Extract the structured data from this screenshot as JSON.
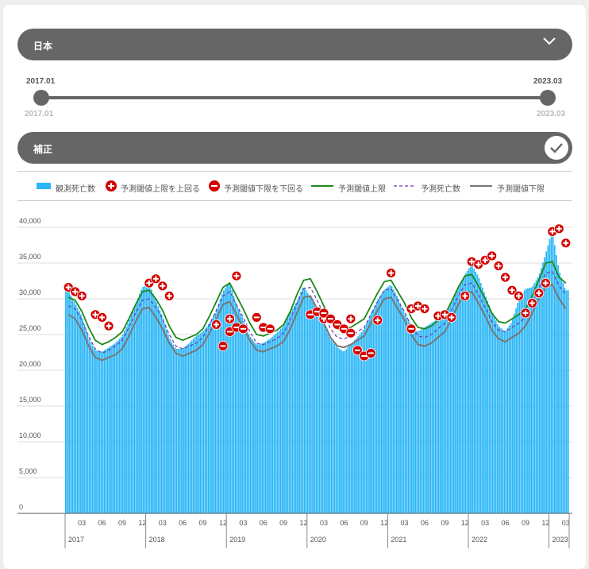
{
  "region": {
    "label": "日本"
  },
  "range": {
    "start_label": "2017.01",
    "end_label": "2023.03",
    "min_label": "2017.01",
    "max_label": "2023.03"
  },
  "hosei": {
    "label": "補正",
    "checked": true
  },
  "legend": [
    {
      "label": "観測死亡数",
      "kind": "bar",
      "color": "#29b6f6"
    },
    {
      "label": "予測閾値上限を上回る",
      "kind": "plus",
      "color": "#d50000"
    },
    {
      "label": "予測閾値下限を下回る",
      "kind": "minus",
      "color": "#d50000"
    },
    {
      "label": "予測閾値上限",
      "kind": "line",
      "color": "#1a8a1a"
    },
    {
      "label": "予測死亡数",
      "kind": "dash",
      "color": "#6a3ab0"
    },
    {
      "label": "予測閾値下限",
      "kind": "line",
      "color": "#777777"
    }
  ],
  "chart_data": {
    "type": "bar",
    "x_start": "2017-01",
    "x_end": "2023-03",
    "ylim": [
      0,
      40000
    ],
    "yticks": [
      0,
      5000,
      10000,
      15000,
      20000,
      25000,
      30000,
      35000,
      40000
    ],
    "ytick_labels": [
      "0",
      "5,000",
      "10,000",
      "15,000",
      "20,000",
      "25,000",
      "30,000",
      "35,000",
      "40,000"
    ],
    "x_month_labels": [
      "03",
      "06",
      "09",
      "12"
    ],
    "x_years": [
      "2017",
      "2018",
      "2019",
      "2020",
      "2021",
      "2022",
      "2023"
    ],
    "series": [
      {
        "name": "予測閾値上限",
        "x": [
          "2017-01",
          "2017-02",
          "2017-03",
          "2017-04",
          "2017-05",
          "2017-06",
          "2017-07",
          "2017-08",
          "2017-09",
          "2017-10",
          "2017-11",
          "2017-12",
          "2018-01",
          "2018-02",
          "2018-03",
          "2018-04",
          "2018-05",
          "2018-06",
          "2018-07",
          "2018-08",
          "2018-09",
          "2018-10",
          "2018-11",
          "2018-12",
          "2019-01",
          "2019-02",
          "2019-03",
          "2019-04",
          "2019-05",
          "2019-06",
          "2019-07",
          "2019-08",
          "2019-09",
          "2019-10",
          "2019-11",
          "2019-12",
          "2020-01",
          "2020-02",
          "2020-03",
          "2020-04",
          "2020-05",
          "2020-06",
          "2020-07",
          "2020-08",
          "2020-09",
          "2020-10",
          "2020-11",
          "2020-12",
          "2021-01",
          "2021-02",
          "2021-03",
          "2021-04",
          "2021-05",
          "2021-06",
          "2021-07",
          "2021-08",
          "2021-09",
          "2021-10",
          "2021-11",
          "2021-12",
          "2022-01",
          "2022-02",
          "2022-03",
          "2022-04",
          "2022-05",
          "2022-06",
          "2022-07",
          "2022-08",
          "2022-09",
          "2022-10",
          "2022-11",
          "2022-12",
          "2023-01",
          "2023-02",
          "2023-03"
        ],
        "values": [
          30200,
          29800,
          28200,
          26000,
          24200,
          23600,
          24000,
          24600,
          25400,
          27200,
          29200,
          31000,
          31200,
          30000,
          28400,
          26200,
          24600,
          24200,
          24600,
          25000,
          25800,
          27600,
          29600,
          31600,
          32200,
          30400,
          28600,
          26600,
          25000,
          24800,
          25200,
          25600,
          26400,
          28200,
          30600,
          32600,
          32800,
          31000,
          29000,
          27000,
          25800,
          25600,
          26000,
          26600,
          27200,
          29000,
          30800,
          32400,
          32600,
          31000,
          29400,
          27400,
          26000,
          25800,
          26200,
          27000,
          27800,
          29600,
          31600,
          33200,
          33400,
          31800,
          30000,
          28000,
          26800,
          26600,
          27200,
          27800,
          28600,
          30400,
          32600,
          35000,
          35200,
          33000,
          32200
        ]
      },
      {
        "name": "予測死亡数",
        "x": [
          "2017-01",
          "2017-02",
          "2017-03",
          "2017-04",
          "2017-05",
          "2017-06",
          "2017-07",
          "2017-08",
          "2017-09",
          "2017-10",
          "2017-11",
          "2017-12",
          "2018-01",
          "2018-02",
          "2018-03",
          "2018-04",
          "2018-05",
          "2018-06",
          "2018-07",
          "2018-08",
          "2018-09",
          "2018-10",
          "2018-11",
          "2018-12",
          "2019-01",
          "2019-02",
          "2019-03",
          "2019-04",
          "2019-05",
          "2019-06",
          "2019-07",
          "2019-08",
          "2019-09",
          "2019-10",
          "2019-11",
          "2019-12",
          "2020-01",
          "2020-02",
          "2020-03",
          "2020-04",
          "2020-05",
          "2020-06",
          "2020-07",
          "2020-08",
          "2020-09",
          "2020-10",
          "2020-11",
          "2020-12",
          "2021-01",
          "2021-02",
          "2021-03",
          "2021-04",
          "2021-05",
          "2021-06",
          "2021-07",
          "2021-08",
          "2021-09",
          "2021-10",
          "2021-11",
          "2021-12",
          "2022-01",
          "2022-02",
          "2022-03",
          "2022-04",
          "2022-05",
          "2022-06",
          "2022-07",
          "2022-08",
          "2022-09",
          "2022-10",
          "2022-11",
          "2022-12",
          "2023-01",
          "2023-02",
          "2023-03"
        ],
        "values": [
          29000,
          28600,
          27000,
          24800,
          23000,
          22400,
          22800,
          23400,
          24200,
          26000,
          28000,
          29800,
          30000,
          28800,
          27200,
          25000,
          23400,
          23000,
          23400,
          23800,
          24600,
          26400,
          28400,
          30400,
          31000,
          29200,
          27400,
          25400,
          23800,
          23600,
          24000,
          24400,
          25200,
          27000,
          29400,
          31400,
          31600,
          29800,
          27800,
          25800,
          24600,
          24400,
          24800,
          25400,
          26000,
          27800,
          29600,
          31200,
          31400,
          29800,
          28200,
          26200,
          24800,
          24600,
          25000,
          25800,
          26600,
          28400,
          30400,
          32000,
          32200,
          30600,
          28800,
          26800,
          25600,
          25400,
          26000,
          26600,
          27400,
          29200,
          31400,
          33600,
          33800,
          31800,
          30600
        ]
      },
      {
        "name": "予測閾値下限",
        "x": [
          "2017-01",
          "2017-02",
          "2017-03",
          "2017-04",
          "2017-05",
          "2017-06",
          "2017-07",
          "2017-08",
          "2017-09",
          "2017-10",
          "2017-11",
          "2017-12",
          "2018-01",
          "2018-02",
          "2018-03",
          "2018-04",
          "2018-05",
          "2018-06",
          "2018-07",
          "2018-08",
          "2018-09",
          "2018-10",
          "2018-11",
          "2018-12",
          "2019-01",
          "2019-02",
          "2019-03",
          "2019-04",
          "2019-05",
          "2019-06",
          "2019-07",
          "2019-08",
          "2019-09",
          "2019-10",
          "2019-11",
          "2019-12",
          "2020-01",
          "2020-02",
          "2020-03",
          "2020-04",
          "2020-05",
          "2020-06",
          "2020-07",
          "2020-08",
          "2020-09",
          "2020-10",
          "2020-11",
          "2020-12",
          "2021-01",
          "2021-02",
          "2021-03",
          "2021-04",
          "2021-05",
          "2021-06",
          "2021-07",
          "2021-08",
          "2021-09",
          "2021-10",
          "2021-11",
          "2021-12",
          "2022-01",
          "2022-02",
          "2022-03",
          "2022-04",
          "2022-05",
          "2022-06",
          "2022-07",
          "2022-08",
          "2022-09",
          "2022-10",
          "2022-11",
          "2022-12",
          "2023-01",
          "2023-02",
          "2023-03"
        ],
        "values": [
          27800,
          27200,
          25600,
          23400,
          21800,
          21400,
          21800,
          22200,
          23000,
          24800,
          26800,
          28600,
          28800,
          27400,
          25800,
          23800,
          22400,
          22000,
          22400,
          22800,
          23600,
          25200,
          27200,
          29200,
          29600,
          27800,
          26000,
          24200,
          22800,
          22600,
          23000,
          23400,
          24000,
          25800,
          28000,
          30200,
          30400,
          28600,
          26600,
          24600,
          23400,
          23200,
          23600,
          24200,
          24800,
          26600,
          28400,
          30000,
          30200,
          28600,
          27000,
          25000,
          23600,
          23400,
          23800,
          24600,
          25400,
          27200,
          29200,
          30800,
          31000,
          29400,
          27600,
          25600,
          24400,
          24000,
          24600,
          25200,
          26200,
          28000,
          30000,
          31600,
          32000,
          30000,
          28600
        ]
      },
      {
        "name": "観測死亡数",
        "x": [
          "2017-01",
          "2017-02",
          "2017-03",
          "2017-04",
          "2017-05",
          "2017-06",
          "2017-07",
          "2017-08",
          "2017-09",
          "2017-10",
          "2017-11",
          "2017-12",
          "2018-01",
          "2018-02",
          "2018-03",
          "2018-04",
          "2018-05",
          "2018-06",
          "2018-07",
          "2018-08",
          "2018-09",
          "2018-10",
          "2018-11",
          "2018-12",
          "2019-01",
          "2019-02",
          "2019-03",
          "2019-04",
          "2019-05",
          "2019-06",
          "2019-07",
          "2019-08",
          "2019-09",
          "2019-10",
          "2019-11",
          "2019-12",
          "2020-01",
          "2020-02",
          "2020-03",
          "2020-04",
          "2020-05",
          "2020-06",
          "2020-07",
          "2020-08",
          "2020-09",
          "2020-10",
          "2020-11",
          "2020-12",
          "2021-01",
          "2021-02",
          "2021-03",
          "2021-04",
          "2021-05",
          "2021-06",
          "2021-07",
          "2021-08",
          "2021-09",
          "2021-10",
          "2021-11",
          "2021-12",
          "2022-01",
          "2022-02",
          "2022-03",
          "2022-04",
          "2022-05",
          "2022-06",
          "2022-07",
          "2022-08",
          "2022-09",
          "2022-10",
          "2022-11",
          "2022-12",
          "2023-01",
          "2023-02",
          "2023-03"
        ],
        "values": [
          31200,
          29400,
          27600,
          24600,
          22800,
          22600,
          23200,
          23800,
          24800,
          26800,
          29200,
          31600,
          32200,
          29800,
          27600,
          24600,
          23000,
          23000,
          23800,
          24800,
          25400,
          26600,
          28200,
          31000,
          32400,
          29200,
          27200,
          24800,
          23600,
          23800,
          24400,
          25200,
          26200,
          28000,
          29600,
          31800,
          30200,
          28600,
          26600,
          24400,
          23200,
          22600,
          23600,
          24600,
          25800,
          27800,
          29800,
          31200,
          32000,
          30200,
          28000,
          26400,
          25400,
          26000,
          26600,
          27200,
          27600,
          29400,
          31400,
          33400,
          34800,
          33200,
          30600,
          28200,
          26200,
          25400,
          26800,
          29800,
          31400,
          31600,
          33200,
          36200,
          39600,
          34000,
          31200
        ]
      }
    ],
    "above_upper_markers": [
      [
        "2017-01",
        31600
      ],
      [
        "2017-02",
        31000
      ],
      [
        "2017-03",
        30400
      ],
      [
        "2017-05",
        27800
      ],
      [
        "2017-06",
        27400
      ],
      [
        "2017-07",
        26200
      ],
      [
        "2018-01",
        32200
      ],
      [
        "2018-02",
        32800
      ],
      [
        "2018-03",
        31800
      ],
      [
        "2018-04",
        30400
      ],
      [
        "2018-11",
        26400
      ],
      [
        "2019-01",
        27200
      ],
      [
        "2019-02",
        33200
      ],
      [
        "2020-03",
        27200
      ],
      [
        "2020-07",
        27200
      ],
      [
        "2020-11",
        27000
      ],
      [
        "2021-01",
        33600
      ],
      [
        "2021-04",
        28600
      ],
      [
        "2021-05",
        29000
      ],
      [
        "2021-06",
        28600
      ],
      [
        "2021-08",
        27600
      ],
      [
        "2021-09",
        27800
      ],
      [
        "2021-10",
        27400
      ],
      [
        "2021-12",
        30400
      ],
      [
        "2022-01",
        35200
      ],
      [
        "2022-02",
        34800
      ],
      [
        "2022-03",
        35400
      ],
      [
        "2022-04",
        36000
      ],
      [
        "2022-05",
        34600
      ],
      [
        "2022-06",
        33000
      ],
      [
        "2022-07",
        31200
      ],
      [
        "2022-08",
        30400
      ],
      [
        "2022-09",
        28000
      ],
      [
        "2022-10",
        29400
      ],
      [
        "2022-11",
        30800
      ],
      [
        "2022-12",
        32200
      ],
      [
        "2023-01",
        39400
      ],
      [
        "2023-02",
        39800
      ],
      [
        "2023-03",
        37800
      ]
    ],
    "below_lower_markers": [
      [
        "2018-12",
        23400
      ],
      [
        "2019-01",
        25400
      ],
      [
        "2019-02",
        26000
      ],
      [
        "2019-03",
        25800
      ],
      [
        "2019-05",
        27400
      ],
      [
        "2019-06",
        26000
      ],
      [
        "2019-07",
        25800
      ],
      [
        "2020-01",
        27800
      ],
      [
        "2020-02",
        28200
      ],
      [
        "2020-03",
        28000
      ],
      [
        "2020-04",
        27200
      ],
      [
        "2020-05",
        26400
      ],
      [
        "2020-06",
        25800
      ],
      [
        "2020-07",
        25200
      ],
      [
        "2020-08",
        22800
      ],
      [
        "2020-09",
        22000
      ],
      [
        "2020-10",
        22400
      ],
      [
        "2021-04",
        25800
      ]
    ]
  }
}
